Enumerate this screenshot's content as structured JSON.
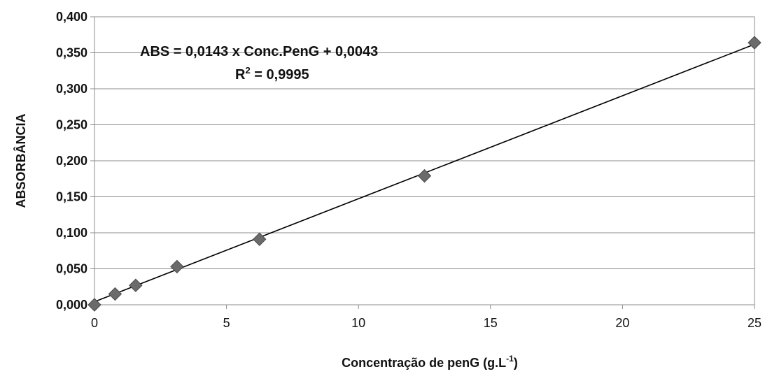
{
  "chart_data": {
    "type": "scatter",
    "title": "",
    "xlabel": "Concentração de penG (g.L",
    "xlabel_superscript": "-1",
    "xlabel_suffix": ")",
    "ylabel": "ABSORBÂNCIA",
    "xlim": [
      0,
      25
    ],
    "ylim": [
      0,
      0.4
    ],
    "x_ticks": [
      "0",
      "5",
      "10",
      "15",
      "20",
      "25"
    ],
    "x_tick_values": [
      0,
      5,
      10,
      15,
      20,
      25
    ],
    "y_ticks": [
      "0,000",
      "0,050",
      "0,100",
      "0,150",
      "0,200",
      "0,250",
      "0,300",
      "0,350",
      "0,400"
    ],
    "y_tick_values": [
      0,
      0.05,
      0.1,
      0.15,
      0.2,
      0.25,
      0.3,
      0.35,
      0.4
    ],
    "grid": {
      "horizontal": true,
      "vertical": false
    },
    "series": [
      {
        "x": [
          0,
          0.78,
          1.56,
          3.125,
          6.25,
          12.5,
          25
        ],
        "y": [
          0.0,
          0.015,
          0.027,
          0.053,
          0.091,
          0.179,
          0.364
        ],
        "marker": "diamond",
        "color": "#6b6b6b"
      }
    ],
    "trendline": {
      "slope": 0.0143,
      "intercept": 0.0043,
      "color": "#000000"
    },
    "annotations": {
      "equation": "ABS = 0,0143 x Conc.PenG + 0,0043",
      "r2_prefix": "R",
      "r2_superscript": "2",
      "r2_value": " = 0,9995"
    }
  }
}
